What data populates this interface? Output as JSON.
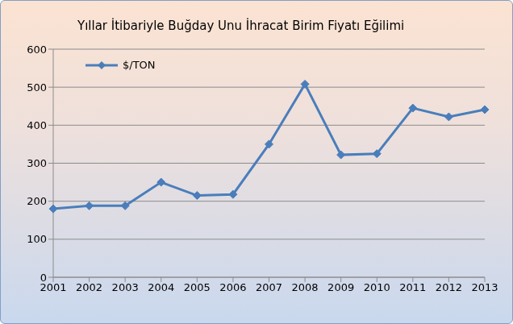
{
  "chart_data": {
    "type": "line",
    "title": "Yıllar İtibariyle Buğday Unu İhracat Birim Fiyatı Eğilimi",
    "categories": [
      "2001",
      "2002",
      "2003",
      "2004",
      "2005",
      "2006",
      "2007",
      "2008",
      "2009",
      "2010",
      "2011",
      "2012",
      "2013"
    ],
    "series": [
      {
        "name": "$/TON",
        "color": "#4a7ebb",
        "marker": "diamond",
        "values": [
          180,
          188,
          188,
          250,
          215,
          218,
          350,
          508,
          322,
          325,
          445,
          422,
          441
        ]
      }
    ],
    "ylim": [
      0,
      600
    ],
    "yticks": [
      0,
      100,
      200,
      300,
      400,
      500,
      600
    ],
    "grid": true,
    "legend": "upper left"
  }
}
